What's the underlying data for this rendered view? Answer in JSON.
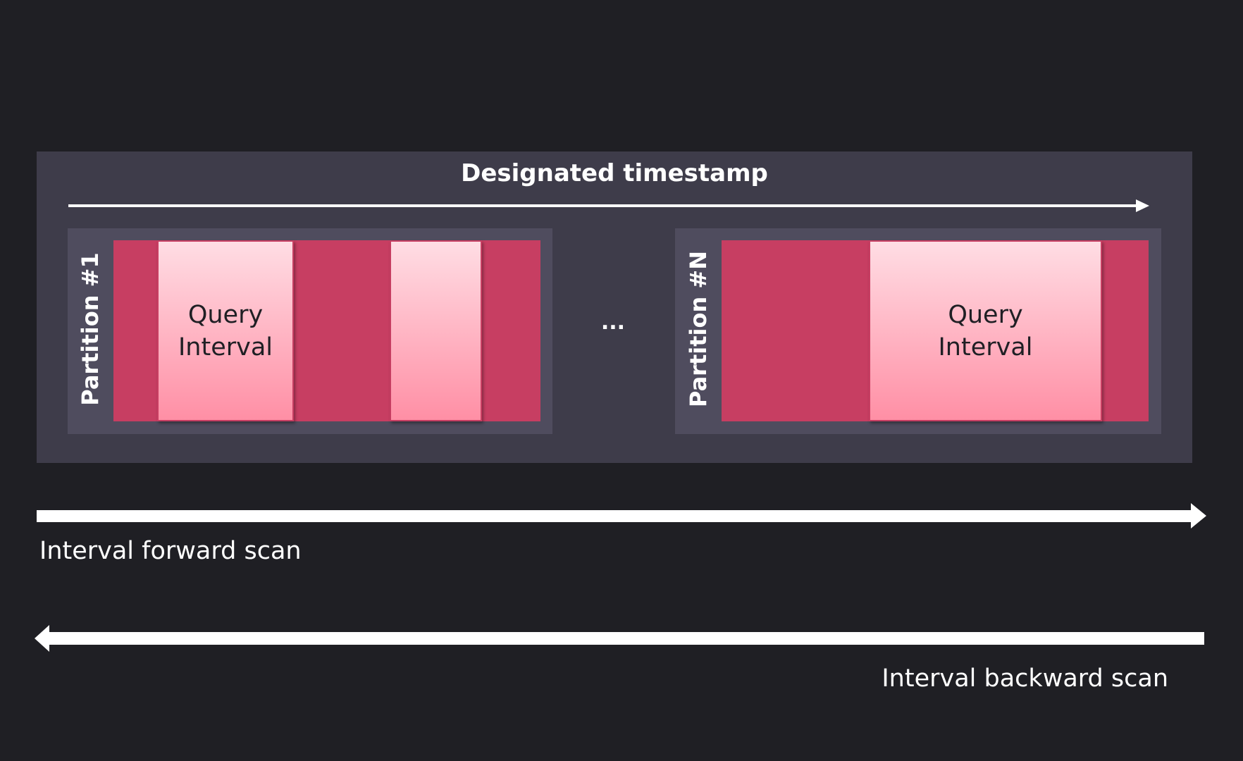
{
  "title": "Designated timestamp",
  "partitions": [
    {
      "label": "Partition #1",
      "query_interval_label": "Query Interval"
    },
    {
      "label": "Partition #N",
      "query_interval_label": "Query Interval"
    }
  ],
  "ellipsis": "...",
  "forward_scan_label": "Interval forward scan",
  "backward_scan_label": "Interval backward scan",
  "colors": {
    "background": "#1f1f24",
    "panel": "#3e3c4a",
    "partition": "#4f4c5e",
    "data": "#c73e62",
    "query_top": "#ffdde4",
    "query_bottom": "#ff8fa5"
  }
}
